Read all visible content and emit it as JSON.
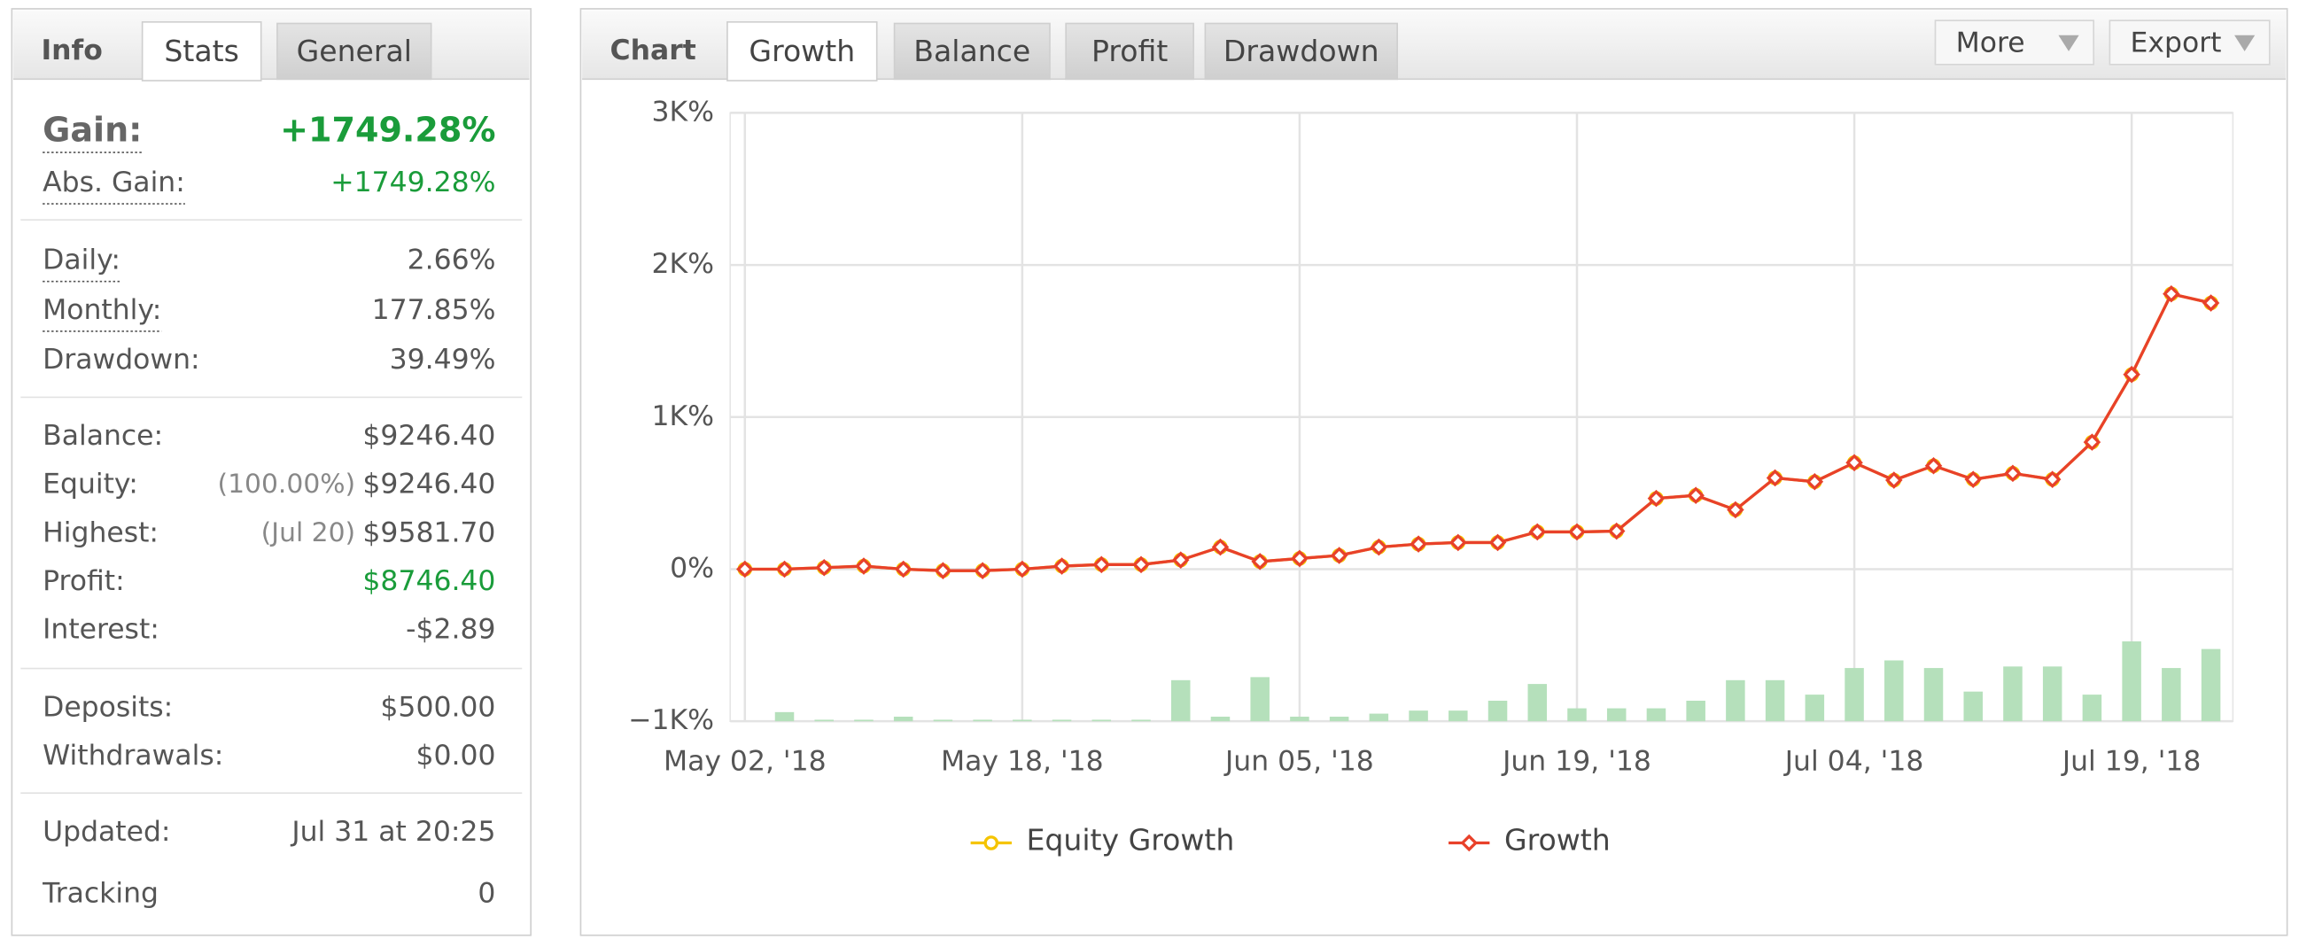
{
  "info_panel": {
    "title": "Info",
    "tabs": [
      "Stats",
      "General"
    ],
    "groups": [
      [
        {
          "label": "Gain:",
          "value": "+1749.28%",
          "color": "#1a9c3a",
          "dotted": true
        },
        {
          "label": "Abs. Gain:",
          "value": "+1749.28%",
          "color": "#1a9c3a",
          "dotted": true
        }
      ],
      [
        {
          "label": "Daily:",
          "value": "2.66%",
          "dotted": true
        },
        {
          "label": "Monthly:",
          "value": "177.85%",
          "dotted": true
        },
        {
          "label": "Drawdown:",
          "value": "39.49%"
        }
      ],
      [
        {
          "label": "Balance:",
          "value": "$9246.40"
        },
        {
          "label": "Equity:",
          "note": "(100.00%)",
          "value": "$9246.40"
        },
        {
          "label": "Highest:",
          "note": "(Jul 20)",
          "value": "$9581.70"
        },
        {
          "label": "Profit:",
          "value": "$8746.40",
          "color": "#1a9c3a"
        },
        {
          "label": "Interest:",
          "value": "-$2.89"
        }
      ],
      [
        {
          "label": "Deposits:",
          "value": "$500.00"
        },
        {
          "label": "Withdrawals:",
          "value": "$0.00"
        }
      ],
      [
        {
          "label": "Updated:",
          "value": "Jul 31 at 20:25"
        },
        {
          "label": "Tracking",
          "value": "0"
        }
      ]
    ]
  },
  "chart_panel": {
    "title": "Chart",
    "tabs": [
      "Growth",
      "Balance",
      "Profit",
      "Drawdown"
    ],
    "buttons": [
      "More",
      "Export"
    ]
  },
  "chart_data": {
    "type": "line",
    "categories": [
      "May 02, '18",
      null,
      null,
      null,
      null,
      null,
      null,
      "May 18, '18",
      null,
      null,
      null,
      null,
      null,
      null,
      "Jun 05, '18",
      null,
      null,
      null,
      null,
      null,
      null,
      "Jun 19, '18",
      null,
      null,
      null,
      null,
      null,
      null,
      "Jul 04, '18",
      null,
      null,
      null,
      null,
      null,
      null,
      "Jul 19, '18",
      null,
      null
    ],
    "series": [
      {
        "name": "Equity Growth",
        "color": "#f5c400",
        "marker": "circle",
        "values": [
          0,
          0,
          10,
          20,
          0,
          -10,
          -10,
          0,
          20,
          30,
          30,
          60,
          145,
          50,
          70,
          90,
          145,
          165,
          175,
          175,
          245,
          245,
          250,
          465,
          485,
          390,
          600,
          575,
          700,
          585,
          680,
          590,
          630,
          590,
          835,
          1280,
          1810,
          1750
        ]
      },
      {
        "name": "Growth",
        "color": "#e8412a",
        "marker": "diamond",
        "values": [
          0,
          0,
          10,
          20,
          0,
          -10,
          -10,
          0,
          20,
          30,
          30,
          60,
          145,
          50,
          70,
          90,
          145,
          165,
          175,
          175,
          245,
          245,
          250,
          465,
          485,
          390,
          600,
          575,
          700,
          585,
          680,
          590,
          630,
          590,
          835,
          1280,
          1810,
          1750
        ]
      }
    ],
    "bars": {
      "color": "#b5e0bb",
      "values": [
        null,
        -940,
        -990,
        -990,
        -970,
        -990,
        -990,
        -990,
        -990,
        -990,
        -990,
        -730,
        -970,
        -710,
        -970,
        -970,
        -950,
        -930,
        -930,
        -865,
        -755,
        -915,
        -915,
        -915,
        -865,
        -730,
        -730,
        -825,
        -650,
        -600,
        -650,
        -805,
        -640,
        -640,
        -825,
        -475,
        -650,
        -525
      ]
    },
    "ylim": [
      -1000,
      3000
    ],
    "yticks": [
      {
        "value": -1000,
        "label": "−1K%"
      },
      {
        "value": 0,
        "label": "0%"
      },
      {
        "value": 1000,
        "label": "1K%"
      },
      {
        "value": 2000,
        "label": "2K%"
      },
      {
        "value": 3000,
        "label": "3K%"
      }
    ],
    "grid": true
  }
}
